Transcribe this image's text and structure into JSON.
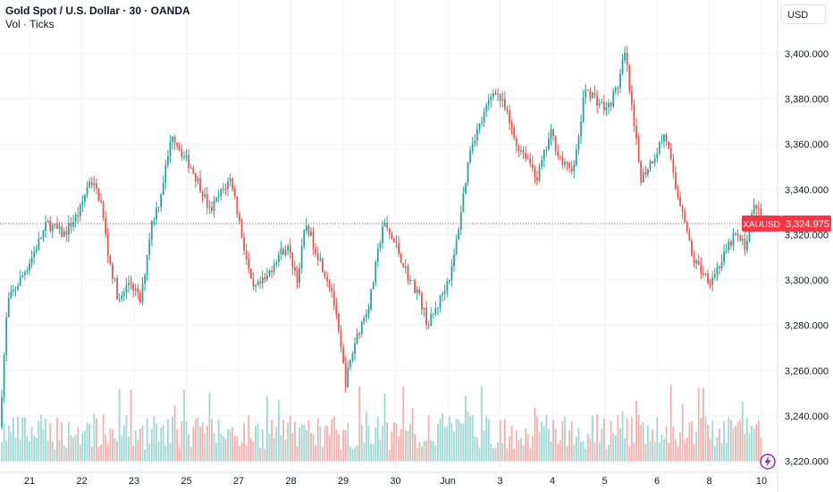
{
  "legend": {
    "title": "Gold Spot / U.S. Dollar · 30 · OANDA",
    "volume_label": "Vol · Ticks"
  },
  "currency_button": "USD",
  "lightning_icon": "lightning-icon",
  "colors": {
    "up": "#26a69a",
    "down": "#ef5350",
    "up_volume": "#9fd9d3",
    "down_volume": "#f5b0ae",
    "grid": "#f0f3fa",
    "current_price": "#f23645",
    "bolt": "#9c27b0"
  },
  "chart_data": {
    "type": "candlestick",
    "symbol": "XAUUSD",
    "current_price": 3324.975,
    "current_price_label": "3,324.975",
    "ylim": [
      3214,
      3408
    ],
    "y_ticks": [
      3220,
      3240,
      3260,
      3280,
      3300,
      3320,
      3340,
      3360,
      3380,
      3400
    ],
    "y_tick_labels": [
      "3,220.000",
      "3,240.000",
      "3,260.000",
      "3,280.000",
      "3,300.000",
      "3,320.000",
      "3,340.000",
      "3,360.000",
      "3,380.000",
      "3,400.000"
    ],
    "x_ticks": [
      {
        "label": "21",
        "session": 1
      },
      {
        "label": "22",
        "session": 2
      },
      {
        "label": "23",
        "session": 3
      },
      {
        "label": "25",
        "session": 4
      },
      {
        "label": "27",
        "session": 5
      },
      {
        "label": "28",
        "session": 6
      },
      {
        "label": "29",
        "session": 7
      },
      {
        "label": "30",
        "session": 8
      },
      {
        "label": "Jun",
        "session": 9
      },
      {
        "label": "3",
        "session": 10
      },
      {
        "label": "4",
        "session": 11
      },
      {
        "label": "5",
        "session": 12
      },
      {
        "label": "6",
        "session": 13
      },
      {
        "label": "8",
        "session": 14
      },
      {
        "label": "10",
        "session": 15
      }
    ],
    "price_path": [
      [
        0,
        3235
      ],
      [
        0.15,
        3290
      ],
      [
        0.5,
        3305
      ],
      [
        0.9,
        3325
      ],
      [
        1.2,
        3320
      ],
      [
        1.5,
        3330
      ],
      [
        1.7,
        3345
      ],
      [
        1.9,
        3335
      ],
      [
        2.05,
        3310
      ],
      [
        2.25,
        3290
      ],
      [
        2.45,
        3300
      ],
      [
        2.65,
        3290
      ],
      [
        2.85,
        3325
      ],
      [
        3.0,
        3335
      ],
      [
        3.25,
        3365
      ],
      [
        3.45,
        3355
      ],
      [
        3.6,
        3350
      ],
      [
        3.8,
        3340
      ],
      [
        3.95,
        3330
      ],
      [
        4.2,
        3340
      ],
      [
        4.35,
        3345
      ],
      [
        4.55,
        3320
      ],
      [
        4.75,
        3295
      ],
      [
        5.0,
        3300
      ],
      [
        5.2,
        3310
      ],
      [
        5.4,
        3315
      ],
      [
        5.6,
        3300
      ],
      [
        5.75,
        3325
      ],
      [
        6.0,
        3310
      ],
      [
        6.25,
        3295
      ],
      [
        6.5,
        3255
      ],
      [
        6.7,
        3275
      ],
      [
        6.95,
        3290
      ],
      [
        7.2,
        3325
      ],
      [
        7.45,
        3315
      ],
      [
        7.7,
        3300
      ],
      [
        7.85,
        3295
      ],
      [
        8.05,
        3280
      ],
      [
        8.25,
        3290
      ],
      [
        8.5,
        3305
      ],
      [
        8.6,
        3320
      ],
      [
        8.85,
        3360
      ],
      [
        9.05,
        3370
      ],
      [
        9.3,
        3385
      ],
      [
        9.5,
        3375
      ],
      [
        9.7,
        3360
      ],
      [
        9.9,
        3355
      ],
      [
        10.1,
        3345
      ],
      [
        10.35,
        3365
      ],
      [
        10.6,
        3350
      ],
      [
        10.8,
        3350
      ],
      [
        11.0,
        3385
      ],
      [
        11.2,
        3380
      ],
      [
        11.4,
        3375
      ],
      [
        11.6,
        3385
      ],
      [
        11.75,
        3400
      ],
      [
        11.9,
        3370
      ],
      [
        12.05,
        3345
      ],
      [
        12.3,
        3355
      ],
      [
        12.5,
        3365
      ],
      [
        12.7,
        3340
      ],
      [
        12.85,
        3330
      ],
      [
        13.0,
        3310
      ],
      [
        13.15,
        3305
      ],
      [
        13.35,
        3300
      ],
      [
        13.6,
        3310
      ],
      [
        13.8,
        3320
      ],
      [
        14.0,
        3315
      ],
      [
        14.2,
        3335
      ],
      [
        14.3,
        3325
      ]
    ],
    "volume": {
      "baseline": 3220,
      "max_height_value": 3266
    }
  }
}
